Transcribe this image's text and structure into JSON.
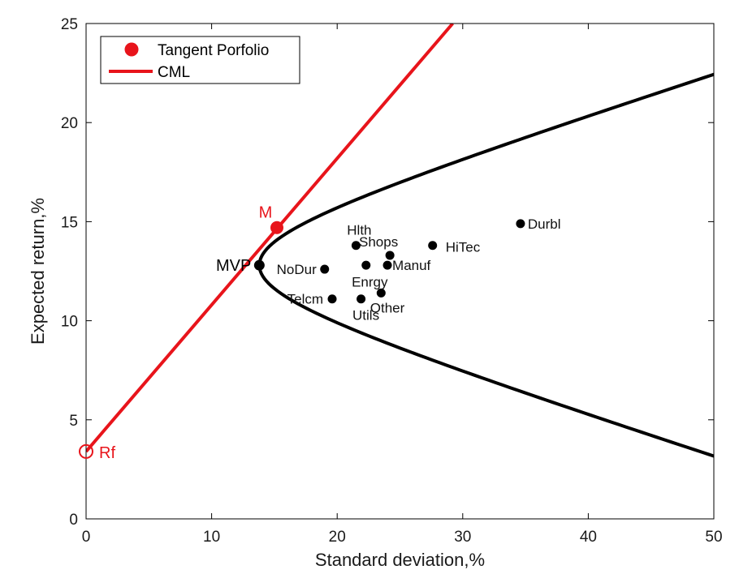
{
  "chart_data": {
    "type": "line",
    "title": "",
    "xlabel": "Standard deviation,%",
    "ylabel": "Expected return,%",
    "xlim": [
      0,
      50
    ],
    "ylim": [
      0,
      25
    ],
    "xticks": [
      0,
      10,
      20,
      30,
      40,
      50
    ],
    "yticks": [
      0,
      5,
      10,
      15,
      20,
      25
    ],
    "grid": false,
    "legend": {
      "placement": "top-left",
      "entries": [
        {
          "label": "Tangent Porfolio",
          "marker": "filled-circle",
          "color": "#e8141b"
        },
        {
          "label": "CML",
          "marker": "line",
          "color": "#e8141b"
        }
      ]
    },
    "frontier": {
      "name": "Efficient frontier",
      "color": "#000000",
      "mvp_sd": 13.8,
      "mvp_return": 12.8,
      "coef": 24.9,
      "return_range": [
        0,
        25
      ]
    },
    "cml": {
      "name": "CML",
      "color": "#e8141b",
      "from": {
        "sd": 0,
        "ret": 3.4
      },
      "to": {
        "sd": 29.2,
        "ret": 25
      }
    },
    "special_points": [
      {
        "name": "M",
        "sd": 15.2,
        "ret": 14.7,
        "color": "#e8141b",
        "marker": "filled"
      },
      {
        "name": "Rf",
        "sd": 0,
        "ret": 3.4,
        "color": "#e8141b",
        "marker": "open"
      },
      {
        "name": "MVP",
        "sd": 13.8,
        "ret": 12.8,
        "color": "#000000",
        "marker": "filled"
      }
    ],
    "assets": [
      {
        "name": "Durbl",
        "sd": 34.6,
        "ret": 14.9
      },
      {
        "name": "HiTec",
        "sd": 27.6,
        "ret": 13.8
      },
      {
        "name": "Hlth",
        "sd": 21.5,
        "ret": 13.8
      },
      {
        "name": "Shops",
        "sd": 24.2,
        "ret": 13.3
      },
      {
        "name": "Manuf",
        "sd": 24.0,
        "ret": 12.8
      },
      {
        "name": "NoDur",
        "sd": 19.0,
        "ret": 12.6
      },
      {
        "name": "Enrgy",
        "sd": 23.5,
        "ret": 11.4
      },
      {
        "name": "Telcm",
        "sd": 19.6,
        "ret": 11.1
      },
      {
        "name": "Utils",
        "sd": 21.9,
        "ret": 11.1
      },
      {
        "name": "Other",
        "sd": 22.3,
        "ret": 12.8
      }
    ]
  }
}
